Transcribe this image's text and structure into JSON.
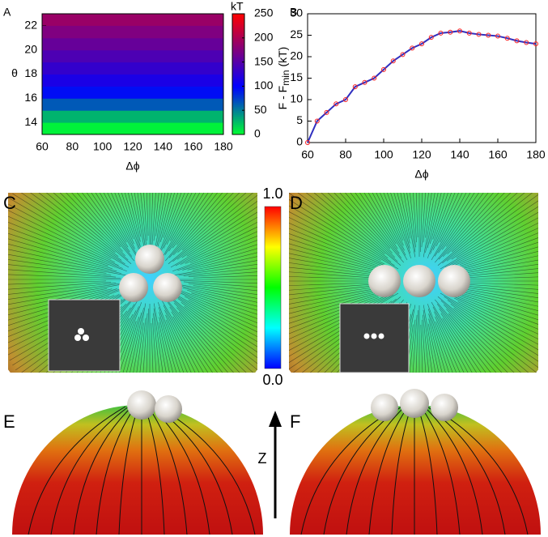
{
  "chart_data": [
    {
      "type": "heatmap",
      "panel": "A",
      "xlabel": "Δϕ",
      "ylabel": "θ",
      "xlim": [
        60,
        180
      ],
      "xticks": [
        60,
        80,
        100,
        120,
        140,
        160,
        180
      ],
      "ylim": [
        13,
        23
      ],
      "yticks": [
        14,
        16,
        18,
        20,
        22
      ],
      "ybins": [
        13,
        14,
        15,
        16,
        17,
        18,
        19,
        20,
        21,
        22,
        23
      ],
      "z": [
        5,
        30,
        65,
        95,
        115,
        130,
        145,
        160,
        175,
        190
      ],
      "colorbar_label": "kT",
      "zlim": [
        0,
        250
      ],
      "zticks": [
        0,
        50,
        100,
        150,
        200,
        250
      ],
      "colorscale": [
        [
          0,
          "#00ff30"
        ],
        [
          100,
          "#0000ff"
        ],
        [
          250,
          "#ff0000"
        ]
      ]
    },
    {
      "type": "line",
      "panel": "B",
      "xlabel": "Δϕ",
      "ylabel": {
        "main": "F - F",
        "sub": "min",
        "unit": " (kT)"
      },
      "xlim": [
        60,
        180
      ],
      "xticks": [
        60,
        80,
        100,
        120,
        140,
        160,
        180
      ],
      "ylim": [
        0,
        30
      ],
      "yticks": [
        0,
        5,
        10,
        15,
        20,
        25,
        30
      ],
      "x": [
        60,
        65,
        70,
        75,
        80,
        85,
        90,
        95,
        100,
        105,
        110,
        115,
        120,
        125,
        130,
        135,
        140,
        145,
        150,
        155,
        160,
        165,
        170,
        175,
        180
      ],
      "series": [
        {
          "color": "#3030c0",
          "marker_color": "#ff2020",
          "values": [
            0,
            5,
            7,
            9,
            10,
            13,
            14,
            15,
            17,
            19,
            20.5,
            22,
            23,
            24.5,
            25.5,
            25.7,
            26,
            25.5,
            25.2,
            25,
            24.8,
            24.3,
            23.7,
            23.3,
            23
          ]
        }
      ]
    }
  ],
  "panels": {
    "C": "C",
    "D": "D",
    "E": "E",
    "F": "F"
  },
  "colorbar": {
    "top": "1.0",
    "bottom": "0.0"
  },
  "axis_arrow": "Z"
}
